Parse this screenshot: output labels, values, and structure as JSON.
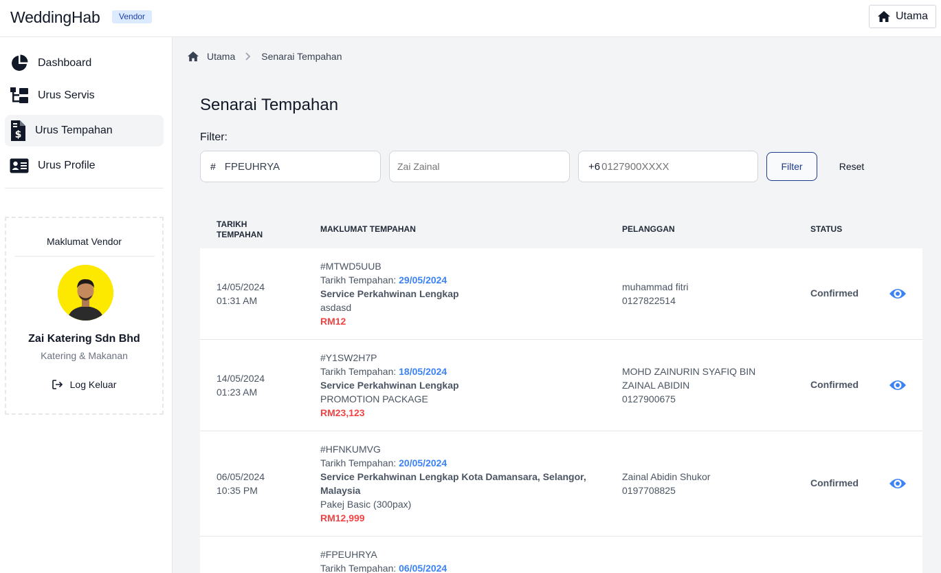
{
  "app": {
    "brand": "WeddingHab",
    "badge": "Vendor",
    "home_button": "Utama"
  },
  "sidebar": {
    "items": [
      {
        "label": "Dashboard",
        "icon": "pie-chart-icon",
        "active": false
      },
      {
        "label": "Urus Servis",
        "icon": "sitemap-icon",
        "active": false
      },
      {
        "label": "Urus Tempahan",
        "icon": "invoice-dollar-icon",
        "active": true
      },
      {
        "label": "Urus Profile",
        "icon": "id-card-icon",
        "active": false
      }
    ],
    "vendor_card": {
      "title": "Maklumat Vendor",
      "name": "Zai Katering Sdn Bhd",
      "category": "Katering & Makanan",
      "logout": "Log Keluar"
    }
  },
  "breadcrumb": [
    "Utama",
    "Senarai Tempahan"
  ],
  "page": {
    "title": "Senarai Tempahan",
    "filter_label": "Filter:"
  },
  "filters": {
    "booking_id": {
      "prefix": "#",
      "value": "FPEUHRYA",
      "placeholder": ""
    },
    "name": {
      "value": "",
      "placeholder": "Zai Zainal"
    },
    "phone": {
      "prefix": "+6",
      "value": "",
      "placeholder": "0127900XXXX"
    },
    "filter_button": "Filter",
    "reset_button": "Reset"
  },
  "table": {
    "headers": {
      "date_line1": "TARIKH",
      "date_line2": "TEMPAHAN",
      "info": "MAKLUMAT TEMPAHAN",
      "customer": "PELANGGAN",
      "status": "STATUS"
    },
    "booking_date_prefix": "Tarikh Tempahan: ",
    "rows": [
      {
        "date": "14/05/2024",
        "time": "01:31 AM",
        "code": "#MTWD5UUB",
        "booking_date": "29/05/2024",
        "service": "Service Perkahwinan Lengkap",
        "service_line2": "",
        "package": "asdasd",
        "price": "RM12",
        "customer_line1": "muhammad fitri",
        "customer_line2": "0127822514",
        "customer_line3": "",
        "status": "Confirmed"
      },
      {
        "date": "14/05/2024",
        "time": "01:23 AM",
        "code": "#Y1SW2H7P",
        "booking_date": "18/05/2024",
        "service": "Service Perkahwinan Lengkap",
        "service_line2": "",
        "package": "PROMOTION PACKAGE",
        "price": "RM23,123",
        "customer_line1": "MOHD ZAINURIN SYAFIQ BIN",
        "customer_line2": "ZAINAL ABIDIN",
        "customer_line3": "0127900675",
        "status": "Confirmed"
      },
      {
        "date": "06/05/2024",
        "time": "10:35 PM",
        "code": "#HFNKUMVG",
        "booking_date": "20/05/2024",
        "service": "Service Perkahwinan Lengkap Kota Damansara, Selangor,",
        "service_line2": "Malaysia",
        "package": "Pakej Basic (300pax)",
        "price": "RM12,999",
        "customer_line1": "Zainal Abidin Shukor",
        "customer_line2": "0197708825",
        "customer_line3": "",
        "status": "Confirmed"
      },
      {
        "date": "",
        "time": "",
        "code": "#FPEUHRYA",
        "booking_date": "06/05/2024",
        "service": "",
        "service_line2": "",
        "package": "",
        "price": "",
        "customer_line1": "",
        "customer_line2": "",
        "customer_line3": "",
        "status": ""
      }
    ]
  },
  "colors": {
    "accent_blue": "#3b82f6",
    "price_red": "#ef4444",
    "filter_border": "#1e3a8a",
    "avatar_bg": "#fde800"
  }
}
